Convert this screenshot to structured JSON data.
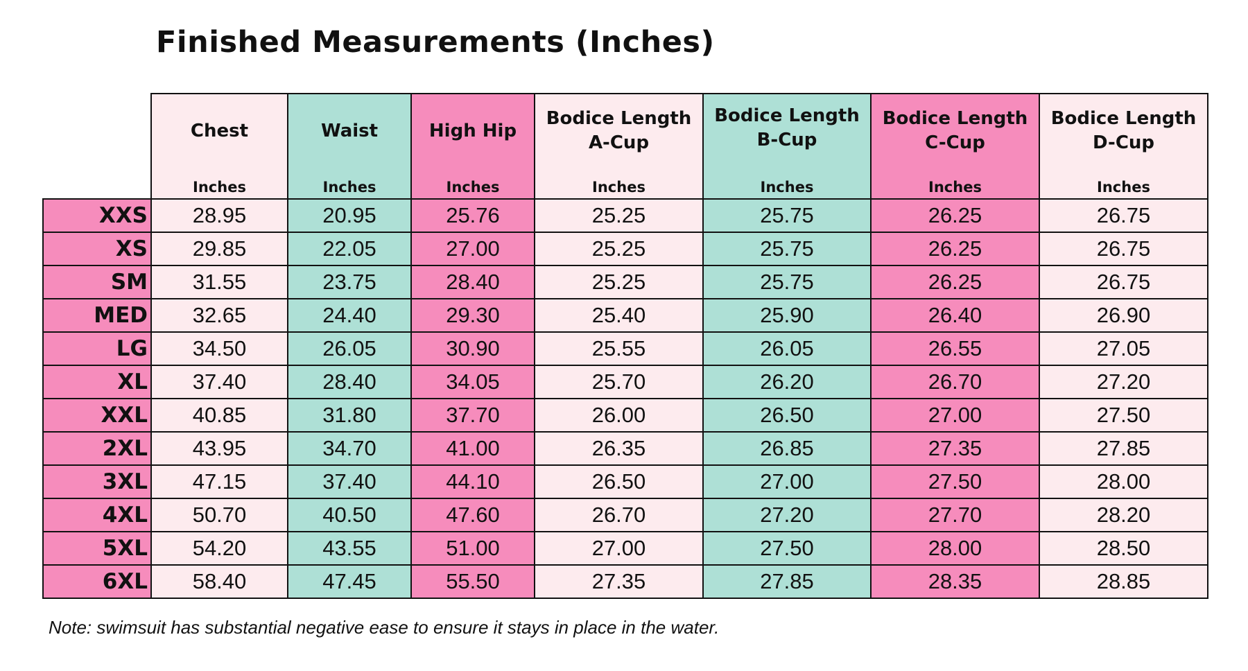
{
  "title": "Finished Measurements (Inches)",
  "colors": {
    "light_pink": "#fdebee",
    "teal": "#aee0d6",
    "pink": "#f68cbc",
    "border": "#111111"
  },
  "columns": [
    {
      "name": "Chest",
      "unit": "Inches",
      "color": "#fdebee"
    },
    {
      "name": "Waist",
      "unit": "Inches",
      "color": "#aee0d6"
    },
    {
      "name": "High Hip",
      "unit": "Inches",
      "color": "#f68cbc"
    },
    {
      "name": "Bodice Length\nA-Cup",
      "unit": "Inches",
      "color": "#fdebee"
    },
    {
      "name": "Bodice Length\nB-Cup",
      "unit": "Inches",
      "color": "#aee0d6"
    },
    {
      "name": "Bodice Length\nC-Cup",
      "unit": "Inches",
      "color": "#f68cbc"
    },
    {
      "name": "Bodice Length\nD-Cup",
      "unit": "Inches",
      "color": "#fdebee"
    }
  ],
  "row_label_color": "#f68cbc",
  "rows": [
    {
      "size": "XXS",
      "values": [
        "28.95",
        "20.95",
        "25.76",
        "25.25",
        "25.75",
        "26.25",
        "26.75"
      ]
    },
    {
      "size": "XS",
      "values": [
        "29.85",
        "22.05",
        "27.00",
        "25.25",
        "25.75",
        "26.25",
        "26.75"
      ]
    },
    {
      "size": "SM",
      "values": [
        "31.55",
        "23.75",
        "28.40",
        "25.25",
        "25.75",
        "26.25",
        "26.75"
      ]
    },
    {
      "size": "MED",
      "values": [
        "32.65",
        "24.40",
        "29.30",
        "25.40",
        "25.90",
        "26.40",
        "26.90"
      ]
    },
    {
      "size": "LG",
      "values": [
        "34.50",
        "26.05",
        "30.90",
        "25.55",
        "26.05",
        "26.55",
        "27.05"
      ]
    },
    {
      "size": "XL",
      "values": [
        "37.40",
        "28.40",
        "34.05",
        "25.70",
        "26.20",
        "26.70",
        "27.20"
      ]
    },
    {
      "size": "XXL",
      "values": [
        "40.85",
        "31.80",
        "37.70",
        "26.00",
        "26.50",
        "27.00",
        "27.50"
      ]
    },
    {
      "size": "2XL",
      "values": [
        "43.95",
        "34.70",
        "41.00",
        "26.35",
        "26.85",
        "27.35",
        "27.85"
      ]
    },
    {
      "size": "3XL",
      "values": [
        "47.15",
        "37.40",
        "44.10",
        "26.50",
        "27.00",
        "27.50",
        "28.00"
      ]
    },
    {
      "size": "4XL",
      "values": [
        "50.70",
        "40.50",
        "47.60",
        "26.70",
        "27.20",
        "27.70",
        "28.20"
      ]
    },
    {
      "size": "5XL",
      "values": [
        "54.20",
        "43.55",
        "51.00",
        "27.00",
        "27.50",
        "28.00",
        "28.50"
      ]
    },
    {
      "size": "6XL",
      "values": [
        "58.40",
        "47.45",
        "55.50",
        "27.35",
        "27.85",
        "28.35",
        "28.85"
      ]
    }
  ],
  "note": "Note: swimsuit has substantial negative ease to ensure it stays in place in the water."
}
